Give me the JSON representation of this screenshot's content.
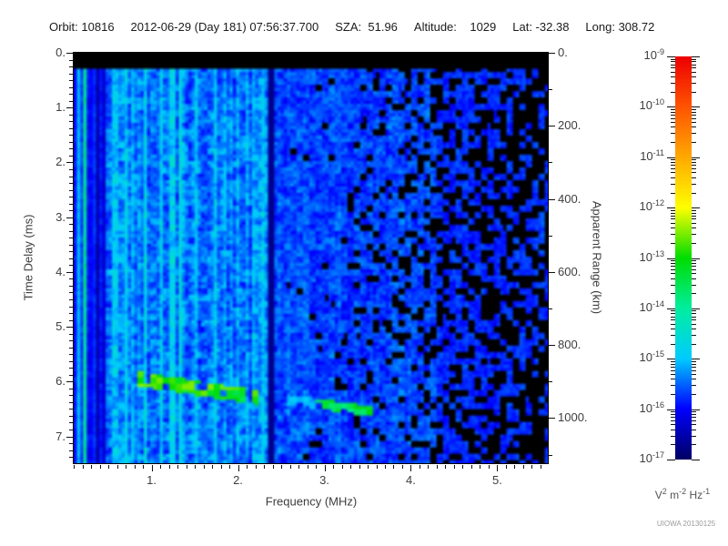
{
  "header": {
    "items": [
      "Orbit: 10816",
      "2012-06-29 (Day 181) 07:56:37.700",
      "SZA:  51.96",
      "Altitude:    1029",
      "Lat: -32.38",
      "Long: 308.72"
    ]
  },
  "watermark": "UIOWA 20130125",
  "chart_data": {
    "type": "heatmap",
    "description": "Radar sounder ionogram: received spectral density versus sounding frequency and echo time delay",
    "x_axis": {
      "label": "Frequency (MHz)",
      "min": 0.1,
      "max": 5.585,
      "major_ticks": [
        1,
        2,
        3,
        4,
        5
      ],
      "major_labels": [
        "1.",
        "2.",
        "3.",
        "4.",
        "5."
      ],
      "minor_step": 0.1
    },
    "y_axis": {
      "label": "Time Delay (ms)",
      "min": 0,
      "max": 7.49,
      "major_ticks": [
        0,
        1,
        2,
        3,
        4,
        5,
        6,
        7
      ],
      "major_labels": [
        "0.",
        "1.",
        "2.",
        "3.",
        "4.",
        "5.",
        "6.",
        "7."
      ],
      "minor_step": 0.125
    },
    "y2_axis": {
      "label": "Apparent Range (km)",
      "km_per_ms": 150,
      "major_ticks": [
        0,
        200,
        400,
        600,
        800,
        1000
      ],
      "major_labels": [
        "0.",
        "200.",
        "400.",
        "600.",
        "800.",
        "1000."
      ],
      "minor_step": 100
    },
    "colorbar": {
      "mantissa_base": "10",
      "decade_exponents": [
        -9,
        -10,
        -11,
        -12,
        -13,
        -14,
        -15,
        -16,
        -17
      ],
      "unit_terms": [
        [
          "V",
          "2"
        ],
        [
          "m",
          "-2"
        ],
        [
          "Hz",
          "-1"
        ]
      ],
      "stops": [
        [
          0,
          "#000066"
        ],
        [
          0.125,
          "#0000ff"
        ],
        [
          0.25,
          "#00ccff"
        ],
        [
          0.375,
          "#00eea0"
        ],
        [
          0.5,
          "#00dd00"
        ],
        [
          0.625,
          "#ffff00"
        ],
        [
          0.75,
          "#ffaa00"
        ],
        [
          0.875,
          "#ff5500"
        ],
        [
          1,
          "#ee0000"
        ]
      ]
    },
    "spectrogram": {
      "seed": 20130125,
      "top_blank_ms": 0.27,
      "regions": [
        {
          "f0": 0.1,
          "f1": 0.25,
          "base": 0.08,
          "col_amp": 0.3,
          "fine_amp": 0.06,
          "b0": 0,
          "b1": 0
        },
        {
          "f0": 0.25,
          "f1": 0.45,
          "base": 0.03,
          "col_amp": 0.1,
          "fine_amp": 0.05,
          "b0": 0,
          "b1": 0
        },
        {
          "f0": 0.45,
          "f1": 2.34,
          "base": 0.11,
          "col_amp": 0.1,
          "fine_amp": 0.14,
          "b0": 0,
          "b1": 0
        },
        {
          "f0": 2.34,
          "f1": 2.42,
          "base": 0.02,
          "col_amp": 0.01,
          "fine_amp": 0.02,
          "b0": 0,
          "b1": 0
        },
        {
          "f0": 2.42,
          "f1": 3.2,
          "base": 0.1,
          "col_amp": 0.02,
          "fine_amp": 0.12,
          "b0": 0,
          "b1": 0.08
        },
        {
          "f0": 3.2,
          "f1": 4.3,
          "base": 0.09,
          "col_amp": 0.02,
          "fine_amp": 0.12,
          "b0": 0.08,
          "b1": 0.35
        },
        {
          "f0": 4.3,
          "f1": 5.585,
          "base": 0.08,
          "col_amp": 0.02,
          "fine_amp": 0.1,
          "b0": 0.35,
          "b1": 0.62
        }
      ],
      "vertical_lines": [
        {
          "f": 1.345,
          "half_width": 0.022,
          "level": 0.28,
          "jitter": 0.08
        },
        {
          "f": 0.155,
          "half_width": 0.012,
          "level": 0.24,
          "jitter": 0.05
        }
      ],
      "traces": [
        {
          "f0": 0.85,
          "f1": 2.25,
          "t0": 5.95,
          "t1": 6.3,
          "half_width_ms": 0.13,
          "level": 0.45,
          "jitter": 0.12
        },
        {
          "f0": 2.55,
          "f1": 3.55,
          "t0": 6.32,
          "t1": 6.55,
          "half_width_ms": 0.09,
          "level": 0.4,
          "jitter": 0.1,
          "fade_below_f": 2.9
        }
      ]
    }
  }
}
